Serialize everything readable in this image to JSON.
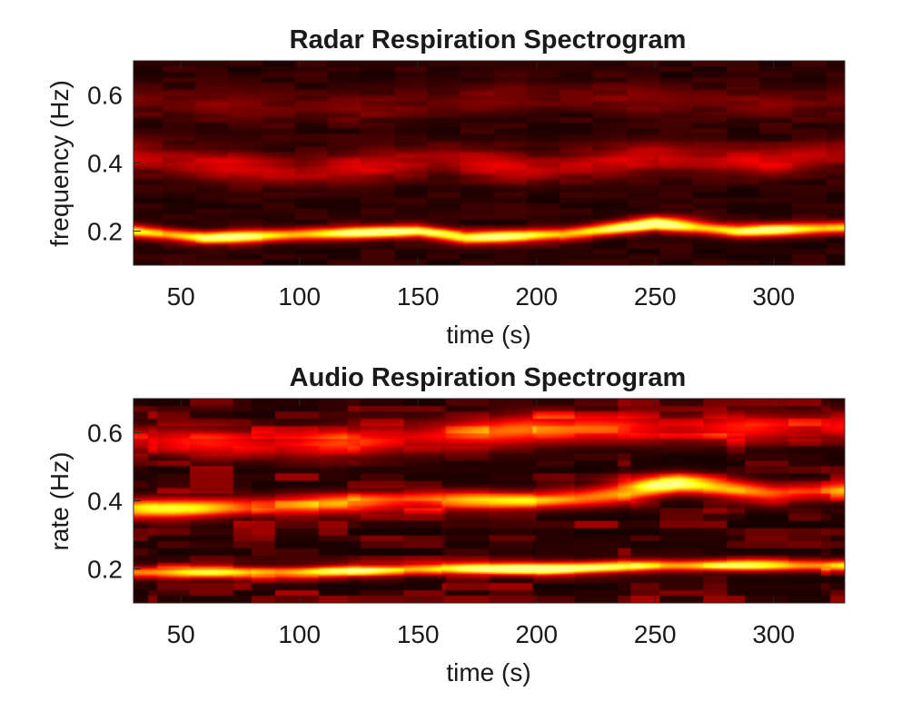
{
  "chart_data": [
    {
      "type": "heatmap",
      "title": "Radar Respiration Spectrogram",
      "xlabel": "time (s)",
      "ylabel": "frequency (Hz)",
      "xlim": [
        30,
        330
      ],
      "ylim": [
        0.1,
        0.7
      ],
      "xticks": [
        50,
        100,
        150,
        200,
        250,
        300
      ],
      "yticks": [
        0.2,
        0.4,
        0.6
      ],
      "colormap": "hot",
      "colors": {
        "background": "#000000",
        "mid": "#c81400",
        "high": "#ffff80"
      },
      "ridges": [
        {
          "name": "fundamental",
          "points": [
            [
              30,
              0.2
            ],
            [
              60,
              0.18
            ],
            [
              100,
              0.19
            ],
            [
              150,
              0.2
            ],
            [
              170,
              0.18
            ],
            [
              210,
              0.19
            ],
            [
              250,
              0.22
            ],
            [
              285,
              0.2
            ],
            [
              330,
              0.21
            ]
          ],
          "intensity": 1.0,
          "width_hz": 0.013
        },
        {
          "name": "harmonic",
          "points": [
            [
              30,
              0.42
            ],
            [
              100,
              0.37
            ],
            [
              160,
              0.41
            ],
            [
              200,
              0.38
            ],
            [
              250,
              0.42
            ],
            [
              300,
              0.4
            ],
            [
              330,
              0.43
            ]
          ],
          "intensity": 0.33,
          "width_hz": 0.03
        },
        {
          "name": "faint",
          "points": [
            [
              30,
              0.58
            ],
            [
              120,
              0.56
            ],
            [
              200,
              0.6
            ],
            [
              300,
              0.57
            ],
            [
              330,
              0.58
            ]
          ],
          "intensity": 0.15,
          "width_hz": 0.03
        }
      ],
      "blobs": [
        {
          "x": 150,
          "y": 0.2,
          "sx": 14,
          "sy": 0.01,
          "v": 0.25
        },
        {
          "x": 255,
          "y": 0.23,
          "sx": 10,
          "sy": 0.015,
          "v": 0.3
        }
      ]
    },
    {
      "type": "heatmap",
      "title": "Audio Respiration Spectrogram",
      "xlabel": "time (s)",
      "ylabel": "rate (Hz)",
      "xlim": [
        30,
        330
      ],
      "ylim": [
        0.1,
        0.7
      ],
      "xticks": [
        50,
        100,
        150,
        200,
        250,
        300
      ],
      "yticks": [
        0.2,
        0.4,
        0.6
      ],
      "colormap": "hot",
      "colors": {
        "background": "#000000",
        "mid": "#c81400",
        "high": "#ffff80"
      },
      "ridges": [
        {
          "name": "fundamental",
          "points": [
            [
              30,
              0.19
            ],
            [
              100,
              0.19
            ],
            [
              150,
              0.2
            ],
            [
              200,
              0.2
            ],
            [
              250,
              0.21
            ],
            [
              330,
              0.21
            ]
          ],
          "intensity": 0.9,
          "width_hz": 0.012
        },
        {
          "name": "harmonic",
          "points": [
            [
              30,
              0.37
            ],
            [
              100,
              0.39
            ],
            [
              150,
              0.4
            ],
            [
              200,
              0.4
            ],
            [
              240,
              0.42
            ],
            [
              260,
              0.45
            ],
            [
              300,
              0.42
            ],
            [
              330,
              0.43
            ]
          ],
          "intensity": 0.6,
          "width_hz": 0.02
        },
        {
          "name": "upper",
          "points": [
            [
              30,
              0.58
            ],
            [
              100,
              0.56
            ],
            [
              180,
              0.6
            ],
            [
              200,
              0.62
            ],
            [
              250,
              0.61
            ],
            [
              330,
              0.62
            ]
          ],
          "intensity": 0.45,
          "width_hz": 0.03
        }
      ],
      "blobs": [
        {
          "x": 200,
          "y": 0.2,
          "sx": 14,
          "sy": 0.012,
          "v": 0.6
        },
        {
          "x": 255,
          "y": 0.45,
          "sx": 14,
          "sy": 0.02,
          "v": 0.55
        },
        {
          "x": 40,
          "y": 0.38,
          "sx": 14,
          "sy": 0.02,
          "v": 0.4
        },
        {
          "x": 200,
          "y": 0.4,
          "sx": 12,
          "sy": 0.012,
          "v": 0.3
        },
        {
          "x": 200,
          "y": 0.6,
          "sx": 14,
          "sy": 0.03,
          "v": 0.25
        }
      ],
      "row_noise": true
    }
  ]
}
